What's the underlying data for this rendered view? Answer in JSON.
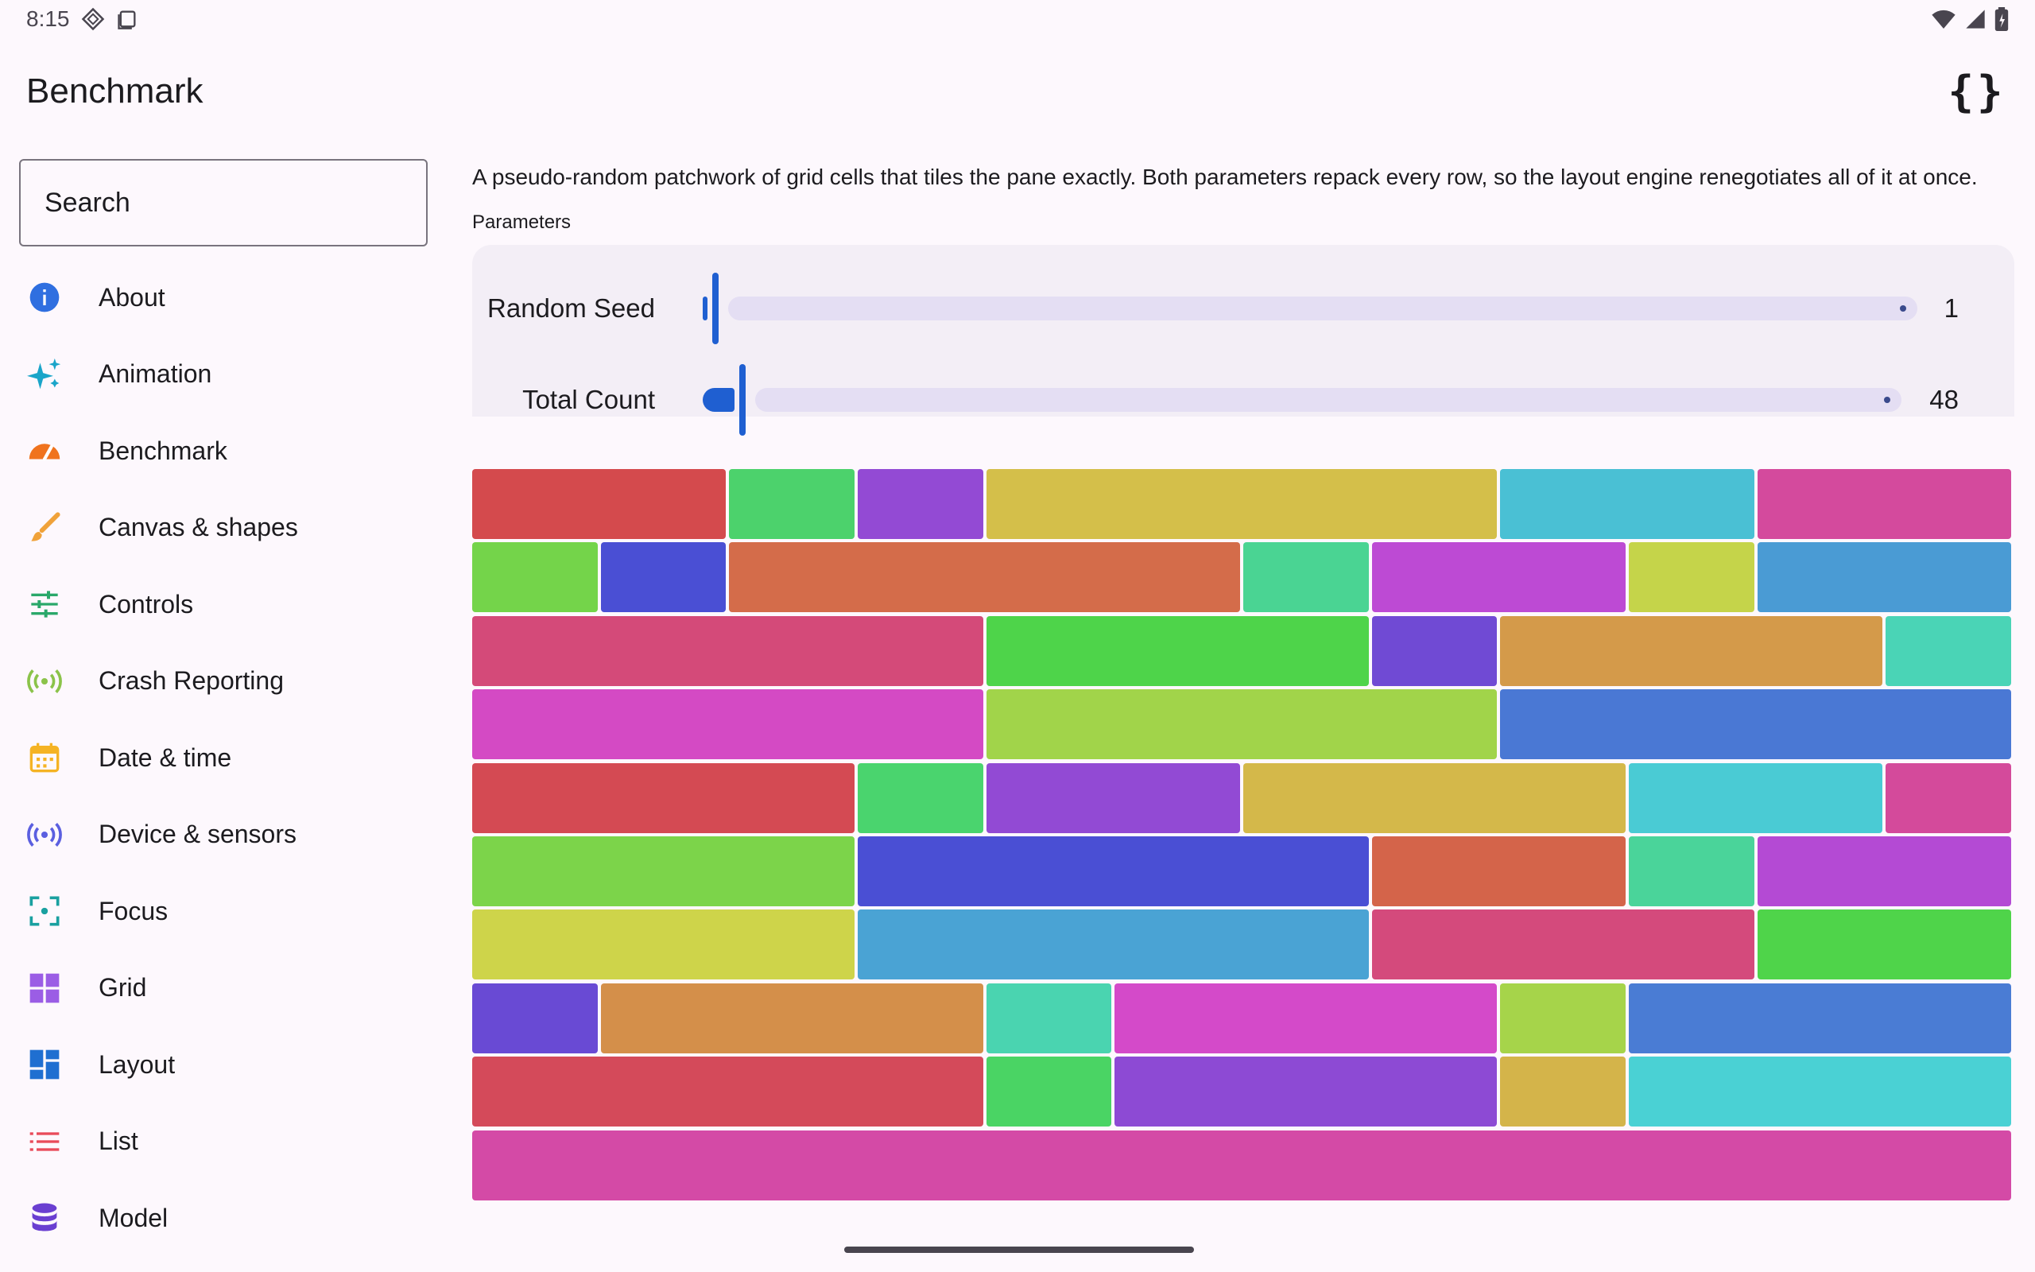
{
  "status_bar": {
    "time": "8:15"
  },
  "app_bar": {
    "title": "Benchmark",
    "action_icon": "braces-icon"
  },
  "sidebar": {
    "search_placeholder": "Search",
    "items": [
      {
        "label": "About",
        "icon": "info-icon",
        "color": "#2f6fe0"
      },
      {
        "label": "Animation",
        "icon": "sparkle-icon",
        "color": "#1aa5c9"
      },
      {
        "label": "Benchmark",
        "icon": "speedometer-icon",
        "color": "#f0731e"
      },
      {
        "label": "Canvas & shapes",
        "icon": "brush-icon",
        "color": "#f0a23a"
      },
      {
        "label": "Controls",
        "icon": "sliders-icon",
        "color": "#2aa86a"
      },
      {
        "label": "Crash Reporting",
        "icon": "broadcast-icon",
        "color": "#8bc34a"
      },
      {
        "label": "Date & time",
        "icon": "calendar-icon",
        "color": "#f5b324"
      },
      {
        "label": "Device & sensors",
        "icon": "sensors-icon",
        "color": "#5b5fe0"
      },
      {
        "label": "Focus",
        "icon": "focus-icon",
        "color": "#1aa0a0"
      },
      {
        "label": "Grid",
        "icon": "grid-icon",
        "color": "#9b5de5"
      },
      {
        "label": "Layout",
        "icon": "layout-icon",
        "color": "#1f6fd1"
      },
      {
        "label": "List",
        "icon": "list-icon",
        "color": "#e94b5a"
      },
      {
        "label": "Model",
        "icon": "database-icon",
        "color": "#6a3fd1"
      }
    ]
  },
  "main": {
    "description": "A pseudo-random patchwork of grid cells that tiles the pane exactly. Both parameters repack every row, so the layout engine renegotiates all of it at once.",
    "parameters_label": "Parameters",
    "params": [
      {
        "label": "Random Seed",
        "value": "1",
        "fraction": 0.0
      },
      {
        "label": "Total Count",
        "value": "48",
        "fraction": 0.0
      }
    ]
  },
  "patchwork": {
    "columns": 12,
    "rows": [
      [
        {
          "span": 2,
          "color": "#d44a4d"
        },
        {
          "span": 1,
          "color": "#4cd26c"
        },
        {
          "span": 1,
          "color": "#934ad4"
        },
        {
          "span": 4,
          "color": "#d4bf4a"
        },
        {
          "span": 2,
          "color": "#4ac0d4"
        },
        {
          "span": 2,
          "color": "#d44a9d"
        }
      ],
      [
        {
          "span": 1,
          "color": "#74d44a"
        },
        {
          "span": 1,
          "color": "#4a4fd4"
        },
        {
          "span": 4,
          "color": "#d46c4a"
        },
        {
          "span": 1,
          "color": "#4ad493"
        },
        {
          "span": 2,
          "color": "#bd4ad4"
        },
        {
          "span": 1,
          "color": "#c5d44a"
        },
        {
          "span": 2,
          "color": "#4a9bd4"
        }
      ],
      [
        {
          "span": 4,
          "color": "#d44a79"
        },
        {
          "span": 3,
          "color": "#4ed44a"
        },
        {
          "span": 1,
          "color": "#704ad4"
        },
        {
          "span": 3,
          "color": "#d49a4a"
        },
        {
          "span": 1,
          "color": "#4ad4b6"
        }
      ],
      [
        {
          "span": 4,
          "color": "#d44ac4"
        },
        {
          "span": 4,
          "color": "#a1d44a"
        },
        {
          "span": 4,
          "color": "#4a78d4"
        }
      ],
      [
        {
          "span": 3,
          "color": "#d44a53"
        },
        {
          "span": 1,
          "color": "#4ad46e"
        },
        {
          "span": 2,
          "color": "#924ad4"
        },
        {
          "span": 3,
          "color": "#d4b84a"
        },
        {
          "span": 2,
          "color": "#4acbd4"
        },
        {
          "span": 1,
          "color": "#d44a9b"
        }
      ],
      [
        {
          "span": 3,
          "color": "#7cd44a"
        },
        {
          "span": 4,
          "color": "#4a4fd4"
        },
        {
          "span": 2,
          "color": "#d4644a"
        },
        {
          "span": 1,
          "color": "#4ad49a"
        },
        {
          "span": 2,
          "color": "#b44ad4"
        }
      ],
      [
        {
          "span": 3,
          "color": "#ced44a"
        },
        {
          "span": 4,
          "color": "#4aa3d4"
        },
        {
          "span": 3,
          "color": "#d44a7c"
        },
        {
          "span": 2,
          "color": "#4fd44a"
        }
      ],
      [
        {
          "span": 1,
          "color": "#694ad4"
        },
        {
          "span": 3,
          "color": "#d48f4a"
        },
        {
          "span": 1,
          "color": "#4ad4b0"
        },
        {
          "span": 3,
          "color": "#d44ac9"
        },
        {
          "span": 1,
          "color": "#a6d44a"
        },
        {
          "span": 3,
          "color": "#4a7cd4"
        }
      ],
      [
        {
          "span": 4,
          "color": "#d44a5a"
        },
        {
          "span": 1,
          "color": "#4ad464"
        },
        {
          "span": 3,
          "color": "#8d4ad4"
        },
        {
          "span": 1,
          "color": "#d4b44a"
        },
        {
          "span": 3,
          "color": "#4ad1d4"
        }
      ],
      [
        {
          "span": 12,
          "color": "#d44aa6"
        }
      ]
    ]
  }
}
